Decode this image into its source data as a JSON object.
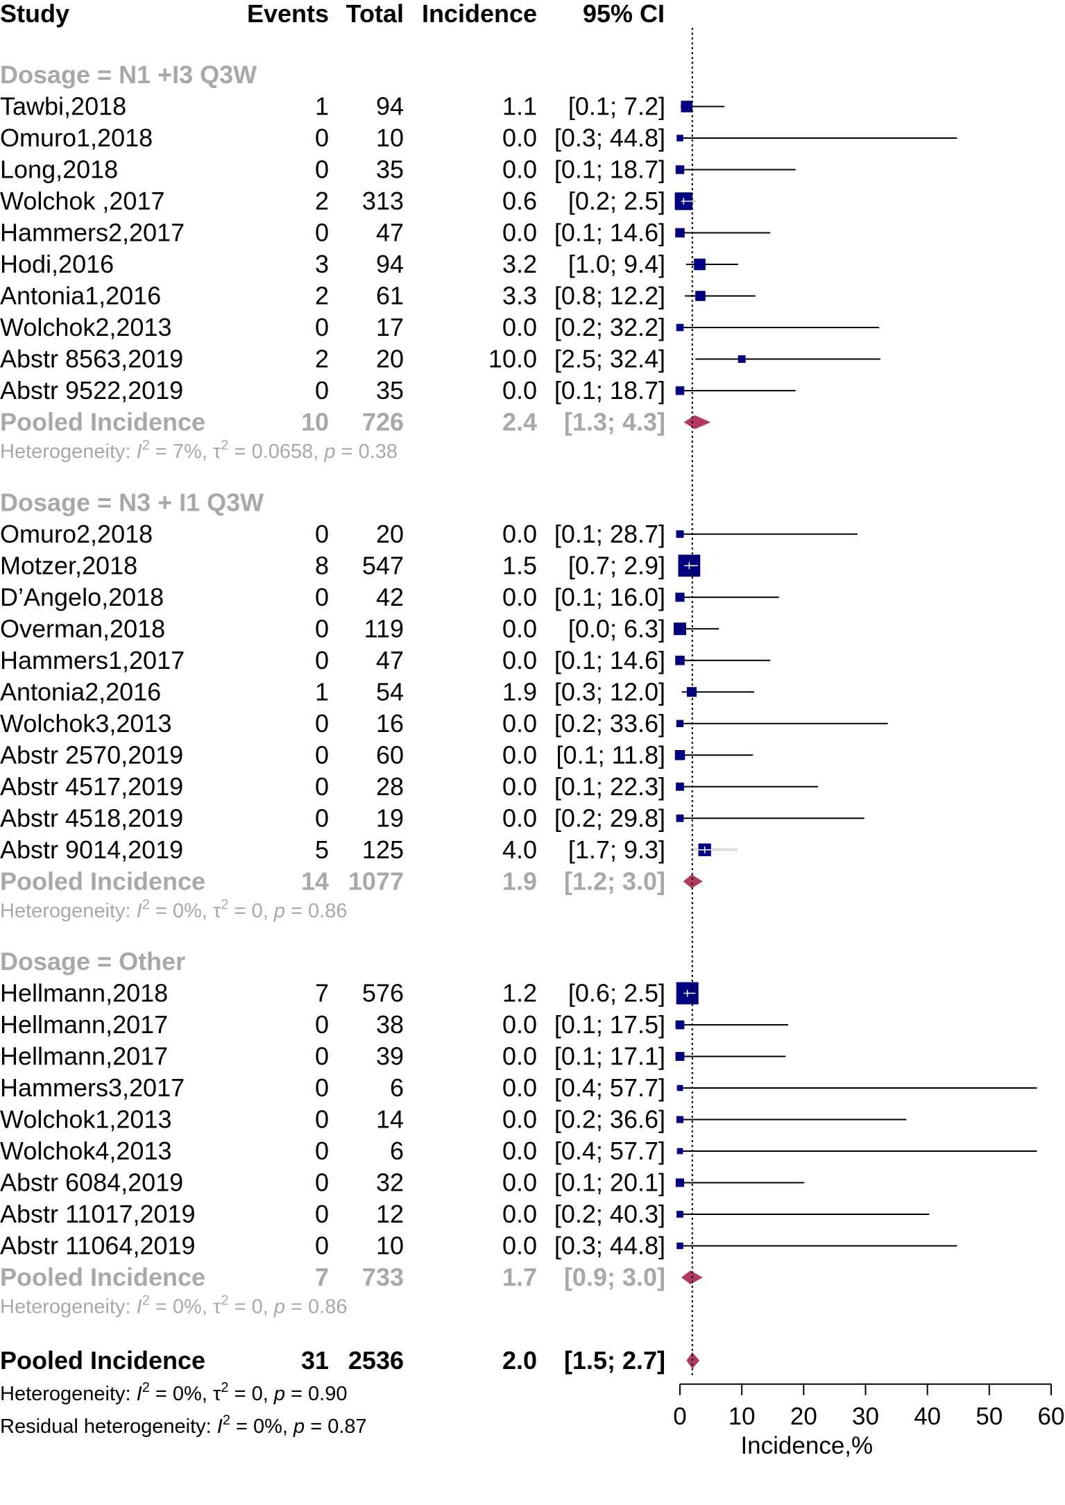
{
  "chart_data": {
    "type": "forest",
    "headers": {
      "study": "Study",
      "events": "Events",
      "total": "Total",
      "incidence": "Incidence",
      "ci": "95% CI"
    },
    "colors": {
      "square": "#000080",
      "diamond": "#b23a5e",
      "subgroup_text": "#a8a8a8",
      "line": "#000000"
    },
    "reference_value": 2.0,
    "groups": [
      {
        "label": "Dosage = N1 +I3 Q3W",
        "studies": [
          {
            "study": "Tawbi,2018",
            "events": "1",
            "total": "94",
            "incidence": "1.1",
            "ci": "[0.1;  7.2]",
            "est": 1.1,
            "lo": 0.1,
            "hi": 7.2
          },
          {
            "study": "Omuro1,2018",
            "events": "0",
            "total": "10",
            "incidence": "0.0",
            "ci": "[0.3; 44.8]",
            "est": 0.0,
            "lo": 0.3,
            "hi": 44.8
          },
          {
            "study": "Long,2018",
            "events": "0",
            "total": "35",
            "incidence": "0.0",
            "ci": "[0.1; 18.7]",
            "est": 0.0,
            "lo": 0.1,
            "hi": 18.7
          },
          {
            "study": "Wolchok ,2017",
            "events": "2",
            "total": "313",
            "incidence": "0.6",
            "ci": "[0.2;  2.5]",
            "est": 0.6,
            "lo": 0.2,
            "hi": 2.5
          },
          {
            "study": "Hammers2,2017",
            "events": "0",
            "total": "47",
            "incidence": "0.0",
            "ci": "[0.1; 14.6]",
            "est": 0.0,
            "lo": 0.1,
            "hi": 14.6
          },
          {
            "study": "Hodi,2016",
            "events": "3",
            "total": "94",
            "incidence": "3.2",
            "ci": "[1.0;  9.4]",
            "est": 3.2,
            "lo": 1.0,
            "hi": 9.4
          },
          {
            "study": "Antonia1,2016",
            "events": "2",
            "total": "61",
            "incidence": "3.3",
            "ci": "[0.8; 12.2]",
            "est": 3.3,
            "lo": 0.8,
            "hi": 12.2
          },
          {
            "study": "Wolchok2,2013",
            "events": "0",
            "total": "17",
            "incidence": "0.0",
            "ci": "[0.2; 32.2]",
            "est": 0.0,
            "lo": 0.2,
            "hi": 32.2
          },
          {
            "study": "Abstr 8563,2019",
            "events": "2",
            "total": "20",
            "incidence": "10.0",
            "ci": "[2.5; 32.4]",
            "est": 10.0,
            "lo": 2.5,
            "hi": 32.4
          },
          {
            "study": "Abstr 9522,2019",
            "events": "0",
            "total": "35",
            "incidence": "0.0",
            "ci": "[0.1; 18.7]",
            "est": 0.0,
            "lo": 0.1,
            "hi": 18.7
          }
        ],
        "pooled": {
          "label": "Pooled Incidence",
          "events": "10",
          "total": "726",
          "incidence": "2.4",
          "ci": "[1.3;  4.3]",
          "est": 2.4,
          "lo": 1.3,
          "hi": 4.3
        },
        "heterogeneity": {
          "i2": "7%",
          "tau2": "0.0658",
          "p": "0.38"
        }
      },
      {
        "label": "Dosage = N3 + I1 Q3W",
        "studies": [
          {
            "study": "Omuro2,2018",
            "events": "0",
            "total": "20",
            "incidence": "0.0",
            "ci": "[0.1; 28.7]",
            "est": 0.0,
            "lo": 0.1,
            "hi": 28.7
          },
          {
            "study": "Motzer,2018",
            "events": "8",
            "total": "547",
            "incidence": "1.5",
            "ci": "[0.7;  2.9]",
            "est": 1.5,
            "lo": 0.7,
            "hi": 2.9
          },
          {
            "study": "D’Angelo,2018",
            "events": "0",
            "total": "42",
            "incidence": "0.0",
            "ci": "[0.1; 16.0]",
            "est": 0.0,
            "lo": 0.1,
            "hi": 16.0
          },
          {
            "study": "Overman,2018",
            "events": "0",
            "total": "119",
            "incidence": "0.0",
            "ci": "[0.0;  6.3]",
            "est": 0.0,
            "lo": 0.0,
            "hi": 6.3
          },
          {
            "study": "Hammers1,2017",
            "events": "0",
            "total": "47",
            "incidence": "0.0",
            "ci": "[0.1; 14.6]",
            "est": 0.0,
            "lo": 0.1,
            "hi": 14.6
          },
          {
            "study": "Antonia2,2016",
            "events": "1",
            "total": "54",
            "incidence": "1.9",
            "ci": "[0.3; 12.0]",
            "est": 1.9,
            "lo": 0.3,
            "hi": 12.0
          },
          {
            "study": "Wolchok3,2013",
            "events": "0",
            "total": "16",
            "incidence": "0.0",
            "ci": "[0.2; 33.6]",
            "est": 0.0,
            "lo": 0.2,
            "hi": 33.6
          },
          {
            "study": "Abstr 2570,2019",
            "events": "0",
            "total": "60",
            "incidence": "0.0",
            "ci": "[0.1; 11.8]",
            "est": 0.0,
            "lo": 0.1,
            "hi": 11.8
          },
          {
            "study": "Abstr 4517,2019",
            "events": "0",
            "total": "28",
            "incidence": "0.0",
            "ci": "[0.1; 22.3]",
            "est": 0.0,
            "lo": 0.1,
            "hi": 22.3
          },
          {
            "study": "Abstr 4518,2019",
            "events": "0",
            "total": "19",
            "incidence": "0.0",
            "ci": "[0.2; 29.8]",
            "est": 0.0,
            "lo": 0.2,
            "hi": 29.8
          },
          {
            "study": "Abstr 9014,2019",
            "events": "5",
            "total": "125",
            "incidence": "4.0",
            "ci": "[1.7;  9.3]",
            "est": 4.0,
            "lo": 1.7,
            "hi": 9.3
          }
        ],
        "pooled": {
          "label": "Pooled Incidence",
          "events": "14",
          "total": "1077",
          "incidence": "1.9",
          "ci": "[1.2;  3.0]",
          "est": 1.9,
          "lo": 1.2,
          "hi": 3.0
        },
        "heterogeneity": {
          "i2": "0%",
          "tau2": "0",
          "p": "0.86"
        }
      },
      {
        "label": "Dosage = Other",
        "studies": [
          {
            "study": "Hellmann,2018",
            "events": "7",
            "total": "576",
            "incidence": "1.2",
            "ci": "[0.6;  2.5]",
            "est": 1.2,
            "lo": 0.6,
            "hi": 2.5
          },
          {
            "study": "Hellmann,2017",
            "events": "0",
            "total": "38",
            "incidence": "0.0",
            "ci": "[0.1; 17.5]",
            "est": 0.0,
            "lo": 0.1,
            "hi": 17.5
          },
          {
            "study": "Hellmann,2017",
            "events": "0",
            "total": "39",
            "incidence": "0.0",
            "ci": "[0.1; 17.1]",
            "est": 0.0,
            "lo": 0.1,
            "hi": 17.1
          },
          {
            "study": "Hammers3,2017",
            "events": "0",
            "total": "6",
            "incidence": "0.0",
            "ci": "[0.4; 57.7]",
            "est": 0.0,
            "lo": 0.4,
            "hi": 57.7
          },
          {
            "study": "Wolchok1,2013",
            "events": "0",
            "total": "14",
            "incidence": "0.0",
            "ci": "[0.2; 36.6]",
            "est": 0.0,
            "lo": 0.2,
            "hi": 36.6
          },
          {
            "study": "Wolchok4,2013",
            "events": "0",
            "total": "6",
            "incidence": "0.0",
            "ci": "[0.4; 57.7]",
            "est": 0.0,
            "lo": 0.4,
            "hi": 57.7
          },
          {
            "study": "Abstr 6084,2019",
            "events": "0",
            "total": "32",
            "incidence": "0.0",
            "ci": "[0.1; 20.1]",
            "est": 0.0,
            "lo": 0.1,
            "hi": 20.1
          },
          {
            "study": "Abstr 11017,2019",
            "events": "0",
            "total": "12",
            "incidence": "0.0",
            "ci": "[0.2; 40.3]",
            "est": 0.0,
            "lo": 0.2,
            "hi": 40.3
          },
          {
            "study": "Abstr 11064,2019",
            "events": "0",
            "total": "10",
            "incidence": "0.0",
            "ci": "[0.3; 44.8]",
            "est": 0.0,
            "lo": 0.3,
            "hi": 44.8
          }
        ],
        "pooled": {
          "label": "Pooled Incidence",
          "events": "7",
          "total": "733",
          "incidence": "1.7",
          "ci": "[0.9;  3.0]",
          "est": 1.7,
          "lo": 0.9,
          "hi": 3.0
        },
        "heterogeneity": {
          "i2": "0%",
          "tau2": "0",
          "p": "0.86"
        }
      }
    ],
    "overall": {
      "label": "Pooled Incidence",
      "events": "31",
      "total": "2536",
      "incidence": "2.0",
      "ci": "[1.5;  2.7]",
      "est": 2.0,
      "lo": 1.5,
      "hi": 2.7,
      "heterogeneity": {
        "i2": "0%",
        "tau2": "0",
        "p": "0.90"
      },
      "residual": {
        "i2": "0%",
        "p": "0.87"
      }
    },
    "axis": {
      "xlabel": "Incidence,%",
      "xlim": [
        0,
        60
      ],
      "ticks": [
        0,
        10,
        20,
        30,
        40,
        50,
        60
      ]
    }
  }
}
